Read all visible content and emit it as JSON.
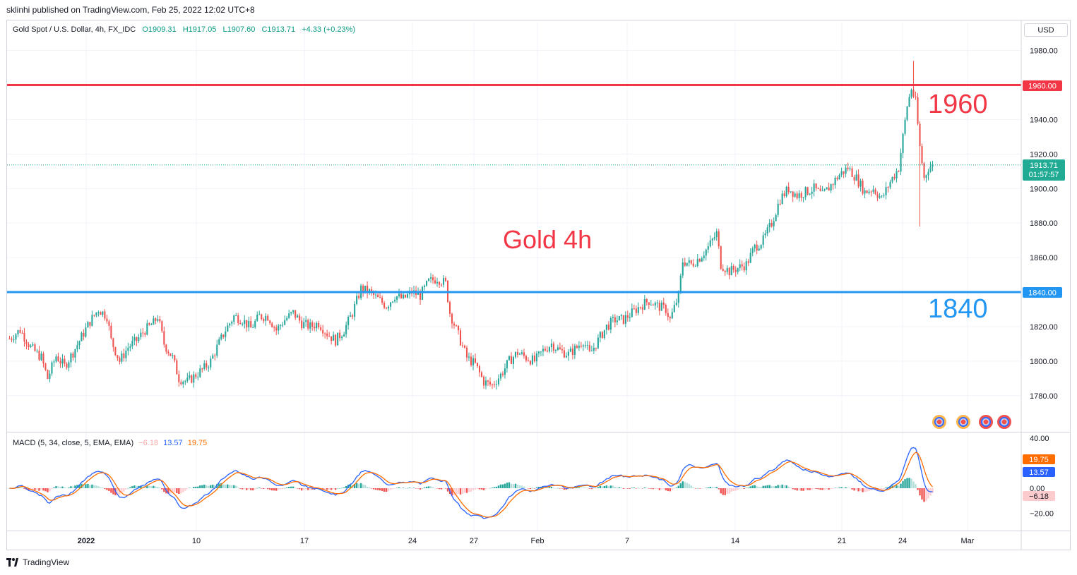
{
  "publisher": "sklinhi published on TradingView.com, Feb 25, 2022 12:02 UTC+8",
  "legend": {
    "symbol": "Gold Spot / U.S. Dollar, 4h, FX_IDC",
    "open": "O1909.31",
    "high": "H1917.05",
    "low": "L1907.60",
    "close": "C1913.71",
    "change": "+4.33 (+0.23%)"
  },
  "currency": "USD",
  "annotations": {
    "gold_label": "Gold 4h",
    "resistance_label": "1960",
    "support_label": "1840"
  },
  "price_tags": {
    "resistance": "1960.00",
    "support": "1840.00",
    "last": "1913.71",
    "countdown": "01:57:57"
  },
  "macd_legend": {
    "title": "MACD (5, 34, close, 5, EMA, EMA)",
    "hist": "−6.18",
    "macd": "13.57",
    "signal": "19.75"
  },
  "macd_tags": {
    "signal": "19.75",
    "macd": "13.57",
    "hist": "−6.18"
  },
  "footer": {
    "brand": "TradingView"
  },
  "colors": {
    "up": "#26a69a",
    "down": "#ef5350",
    "resistance": "#f23645",
    "support": "#2196f3",
    "macd": "#2962ff",
    "signal": "#ff6d00",
    "text_red": "#f23645",
    "text_blue": "#2196f3"
  },
  "chart_data": {
    "type": "candlestick",
    "timeframe": "4h",
    "price_axis": {
      "ticks": [
        1780,
        1800,
        1820,
        1840,
        1860,
        1880,
        1900,
        1920,
        1940,
        1960,
        1980
      ],
      "range": [
        1765,
        1990
      ]
    },
    "time_axis": {
      "labels": [
        "2022",
        "10",
        "17",
        "24",
        "27",
        "Feb",
        "7",
        "14",
        "21",
        "24",
        "Mar"
      ]
    },
    "horizontal_lines": [
      {
        "value": 1960,
        "label": "1960"
      },
      {
        "value": 1840,
        "label": "1840"
      }
    ],
    "last_price": 1913.71,
    "close_path": [
      [
        0,
        1813
      ],
      [
        5,
        1818
      ],
      [
        10,
        1808
      ],
      [
        15,
        1802
      ],
      [
        18,
        1790
      ],
      [
        22,
        1803
      ],
      [
        26,
        1797
      ],
      [
        30,
        1805
      ],
      [
        34,
        1814
      ],
      [
        38,
        1823
      ],
      [
        42,
        1830
      ],
      [
        46,
        1826
      ],
      [
        48,
        1812
      ],
      [
        52,
        1800
      ],
      [
        56,
        1808
      ],
      [
        60,
        1812
      ],
      [
        64,
        1818
      ],
      [
        68,
        1822
      ],
      [
        70,
        1826
      ],
      [
        73,
        1810
      ],
      [
        77,
        1802
      ],
      [
        80,
        1790
      ],
      [
        84,
        1788
      ],
      [
        88,
        1792
      ],
      [
        92,
        1796
      ],
      [
        95,
        1800
      ],
      [
        98,
        1808
      ],
      [
        102,
        1818
      ],
      [
        106,
        1826
      ],
      [
        110,
        1824
      ],
      [
        114,
        1819
      ],
      [
        118,
        1826
      ],
      [
        122,
        1826
      ],
      [
        126,
        1818
      ],
      [
        130,
        1824
      ],
      [
        134,
        1828
      ],
      [
        138,
        1822
      ],
      [
        142,
        1820
      ],
      [
        146,
        1822
      ],
      [
        150,
        1816
      ],
      [
        154,
        1812
      ],
      [
        158,
        1818
      ],
      [
        162,
        1828
      ],
      [
        166,
        1842
      ],
      [
        170,
        1840
      ],
      [
        174,
        1836
      ],
      [
        178,
        1832
      ],
      [
        182,
        1838
      ],
      [
        186,
        1836
      ],
      [
        190,
        1840
      ],
      [
        194,
        1838
      ],
      [
        198,
        1846
      ],
      [
        202,
        1848
      ],
      [
        206,
        1845
      ],
      [
        208,
        1828
      ],
      [
        212,
        1815
      ],
      [
        216,
        1802
      ],
      [
        220,
        1798
      ],
      [
        224,
        1788
      ],
      [
        228,
        1786
      ],
      [
        232,
        1792
      ],
      [
        236,
        1800
      ],
      [
        240,
        1805
      ],
      [
        244,
        1802
      ],
      [
        248,
        1800
      ],
      [
        252,
        1806
      ],
      [
        256,
        1810
      ],
      [
        260,
        1806
      ],
      [
        264,
        1804
      ],
      [
        268,
        1808
      ],
      [
        271,
        1812
      ],
      [
        274,
        1804
      ],
      [
        278,
        1812
      ],
      [
        282,
        1820
      ],
      [
        286,
        1824
      ],
      [
        290,
        1824
      ],
      [
        294,
        1828
      ],
      [
        298,
        1832
      ],
      [
        302,
        1835
      ],
      [
        306,
        1832
      ],
      [
        310,
        1830
      ],
      [
        312,
        1824
      ],
      [
        316,
        1838
      ],
      [
        318,
        1858
      ],
      [
        322,
        1856
      ],
      [
        326,
        1860
      ],
      [
        330,
        1866
      ],
      [
        334,
        1874
      ],
      [
        336,
        1856
      ],
      [
        340,
        1852
      ],
      [
        344,
        1854
      ],
      [
        348,
        1856
      ],
      [
        352,
        1866
      ],
      [
        356,
        1870
      ],
      [
        360,
        1880
      ],
      [
        364,
        1894
      ],
      [
        368,
        1900
      ],
      [
        372,
        1896
      ],
      [
        376,
        1898
      ],
      [
        380,
        1900
      ],
      [
        384,
        1896
      ],
      [
        388,
        1902
      ],
      [
        392,
        1908
      ],
      [
        396,
        1912
      ],
      [
        400,
        1906
      ],
      [
        404,
        1898
      ],
      [
        408,
        1900
      ],
      [
        412,
        1894
      ],
      [
        416,
        1904
      ],
      [
        420,
        1912
      ],
      [
        422,
        1930
      ],
      [
        424,
        1948
      ],
      [
        426,
        1958
      ],
      [
        428,
        1950
      ],
      [
        430,
        1924
      ],
      [
        432,
        1906
      ],
      [
        434,
        1912
      ],
      [
        436,
        1914
      ]
    ]
  }
}
